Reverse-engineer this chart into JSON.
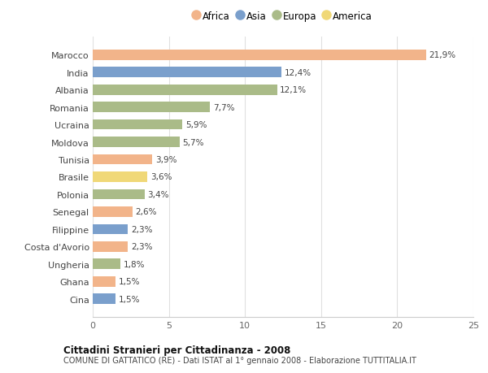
{
  "countries": [
    "Marocco",
    "India",
    "Albania",
    "Romania",
    "Ucraina",
    "Moldova",
    "Tunisia",
    "Brasile",
    "Polonia",
    "Senegal",
    "Filippine",
    "Costa d'Avorio",
    "Ungheria",
    "Ghana",
    "Cina"
  ],
  "values": [
    21.9,
    12.4,
    12.1,
    7.7,
    5.9,
    5.7,
    3.9,
    3.6,
    3.4,
    2.6,
    2.3,
    2.3,
    1.8,
    1.5,
    1.5
  ],
  "labels": [
    "21,9%",
    "12,4%",
    "12,1%",
    "7,7%",
    "5,9%",
    "5,7%",
    "3,9%",
    "3,6%",
    "3,4%",
    "2,6%",
    "2,3%",
    "2,3%",
    "1,8%",
    "1,5%",
    "1,5%"
  ],
  "continents": [
    "Africa",
    "Asia",
    "Europa",
    "Europa",
    "Europa",
    "Europa",
    "Africa",
    "America",
    "Europa",
    "Africa",
    "Asia",
    "Africa",
    "Europa",
    "Africa",
    "Asia"
  ],
  "colors": {
    "Africa": "#F2B48A",
    "Asia": "#7A9FCC",
    "Europa": "#AABB88",
    "America": "#F0D878"
  },
  "legend_order": [
    "Africa",
    "Asia",
    "Europa",
    "America"
  ],
  "title1": "Cittadini Stranieri per Cittadinanza - 2008",
  "title2": "COMUNE DI GATTATICO (RE) - Dati ISTAT al 1° gennaio 2008 - Elaborazione TUTTITALIA.IT",
  "xlim": [
    0,
    25
  ],
  "xticks": [
    0,
    5,
    10,
    15,
    20,
    25
  ],
  "background_color": "#ffffff",
  "grid_color": "#e0e0e0"
}
